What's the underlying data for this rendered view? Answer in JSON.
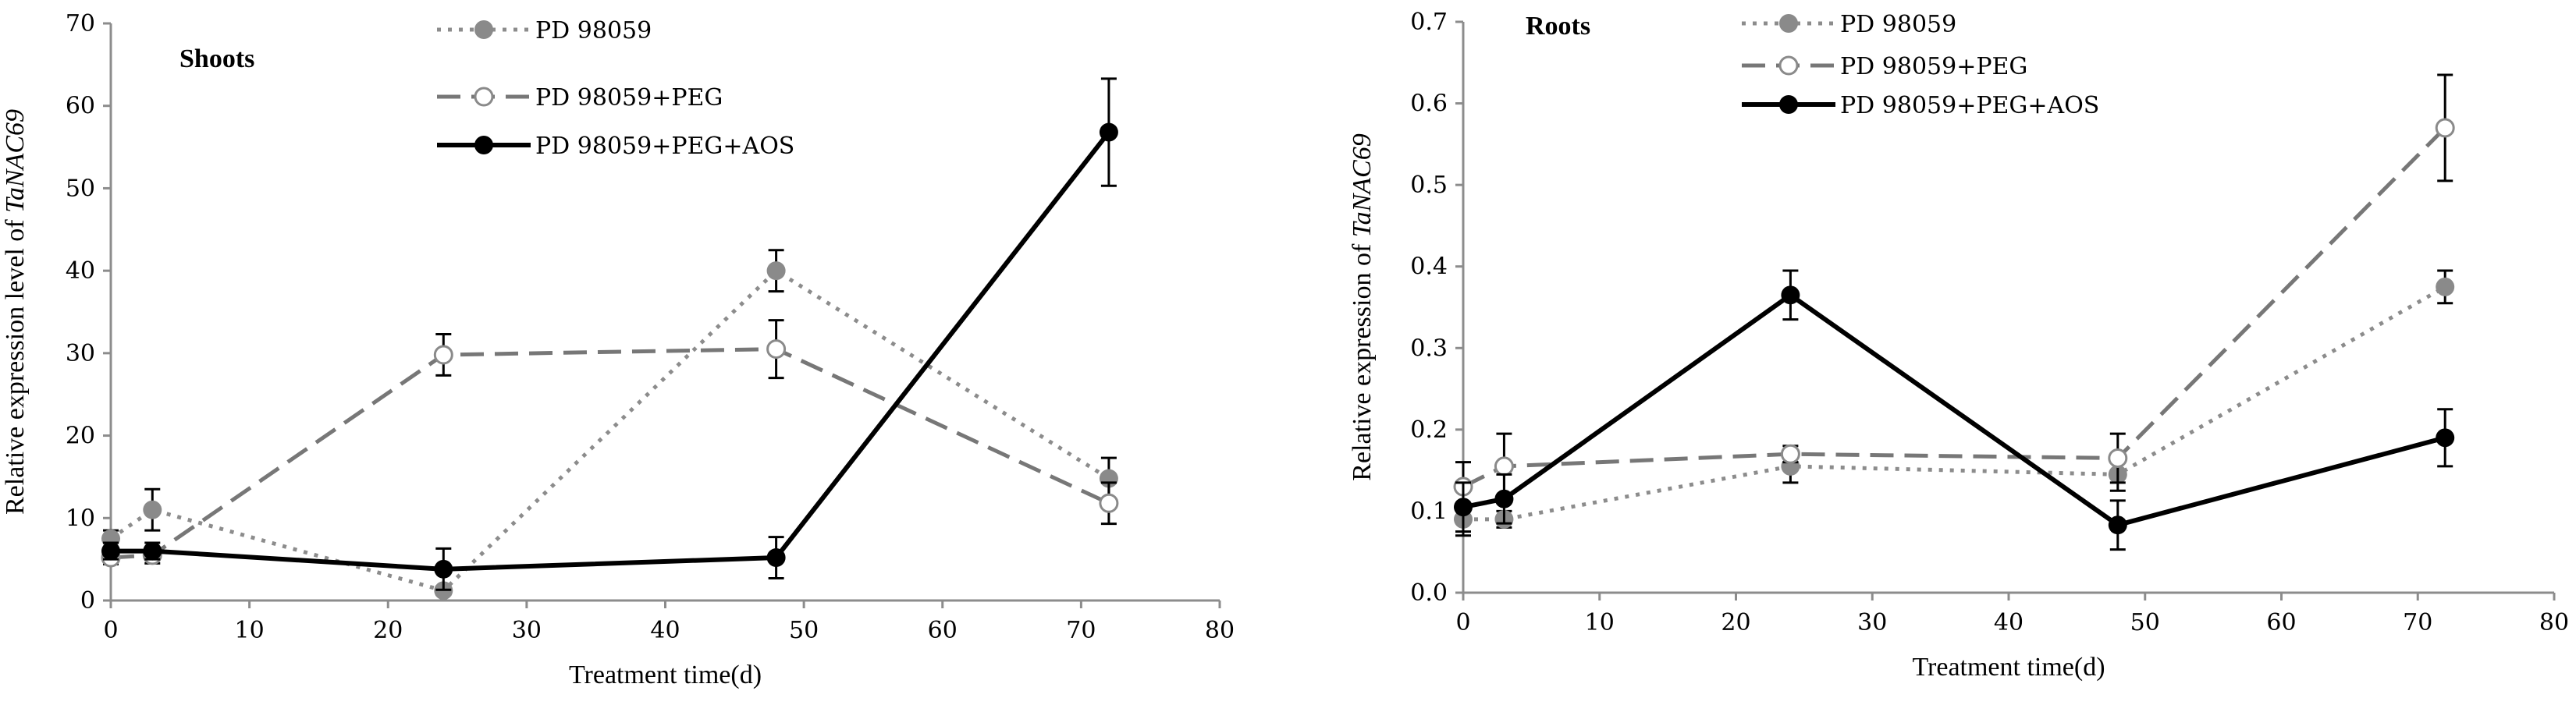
{
  "chart_data": [
    {
      "type": "line",
      "panel_label": "Shoots",
      "xlabel": "Treatment time(d)",
      "ylabel": "Relative expression level of TaNAC69",
      "ylabel_prefix": "Relative expression level of ",
      "ylabel_gene": "TaNAC69",
      "xlim": [
        0,
        80
      ],
      "ylim": [
        0,
        70
      ],
      "xticks": [
        0,
        10,
        20,
        30,
        40,
        50,
        60,
        70,
        80
      ],
      "yticks": [
        0,
        10,
        20,
        30,
        40,
        50,
        60,
        70
      ],
      "ytick_labels": [
        "0",
        "10",
        "20",
        "30",
        "40",
        "50",
        "60",
        "70"
      ],
      "legend_position": "top-center",
      "series": [
        {
          "name": "PD 98059",
          "style": "dotted",
          "color": "#8c8c8c",
          "marker": "filled",
          "marker_color": "#8a8a8a",
          "x": [
            0,
            3,
            24,
            48,
            72
          ],
          "y": [
            7.5,
            11,
            1.2,
            40,
            14.8
          ],
          "err": [
            1,
            2.5,
            0.5,
            2.5,
            2.5
          ]
        },
        {
          "name": "PD 98059+PEG",
          "style": "dashed",
          "color": "#777777",
          "marker": "open",
          "marker_color": "#8a8a8a",
          "x": [
            0,
            3,
            24,
            48,
            72
          ],
          "y": [
            5.2,
            5.5,
            29.8,
            30.5,
            11.8
          ],
          "err": [
            0.8,
            1,
            2.5,
            3.5,
            2.5
          ]
        },
        {
          "name": "PD 98059+PEG+AOS",
          "style": "solid",
          "color": "#000000",
          "marker": "filled",
          "marker_color": "#000000",
          "x": [
            0,
            3,
            24,
            48,
            72
          ],
          "y": [
            6,
            6,
            3.8,
            5.2,
            56.8
          ],
          "err": [
            1,
            1,
            2.5,
            2.5,
            6.5
          ]
        }
      ]
    },
    {
      "type": "line",
      "panel_label": "Roots",
      "xlabel": "Treatment time(d)",
      "ylabel": "Relative expression of TaNAC69",
      "ylabel_prefix": "Relative expression of ",
      "ylabel_gene": "TaNAC69",
      "xlim": [
        0,
        80
      ],
      "ylim": [
        0,
        0.7
      ],
      "xticks": [
        0,
        10,
        20,
        30,
        40,
        50,
        60,
        70,
        80
      ],
      "yticks": [
        0,
        0.1,
        0.2,
        0.3,
        0.4,
        0.5,
        0.6,
        0.7
      ],
      "ytick_labels": [
        "0.0",
        "0.1",
        "0.2",
        "0.3",
        "0.4",
        "0.5",
        "0.6",
        "0.7"
      ],
      "legend_position": "top-center",
      "series": [
        {
          "name": "PD 98059",
          "style": "dotted",
          "color": "#8c8c8c",
          "marker": "filled",
          "marker_color": "#8a8a8a",
          "x": [
            0,
            3,
            24,
            48,
            72
          ],
          "y": [
            0.09,
            0.09,
            0.155,
            0.145,
            0.375
          ],
          "err": [
            0.02,
            0.01,
            0.02,
            0.02,
            0.02
          ]
        },
        {
          "name": "PD 98059+PEG",
          "style": "dashed",
          "color": "#777777",
          "marker": "open",
          "marker_color": "#8a8a8a",
          "x": [
            0,
            3,
            24,
            48,
            72
          ],
          "y": [
            0.13,
            0.155,
            0.17,
            0.165,
            0.57
          ],
          "err": [
            0.03,
            0.04,
            0.01,
            0.03,
            0.065
          ]
        },
        {
          "name": "PD 98059+PEG+AOS",
          "style": "solid",
          "color": "#000000",
          "marker": "filled",
          "marker_color": "#000000",
          "x": [
            0,
            3,
            24,
            48,
            72
          ],
          "y": [
            0.105,
            0.115,
            0.365,
            0.083,
            0.19
          ],
          "err": [
            0.03,
            0.03,
            0.03,
            0.03,
            0.035
          ]
        }
      ]
    }
  ]
}
